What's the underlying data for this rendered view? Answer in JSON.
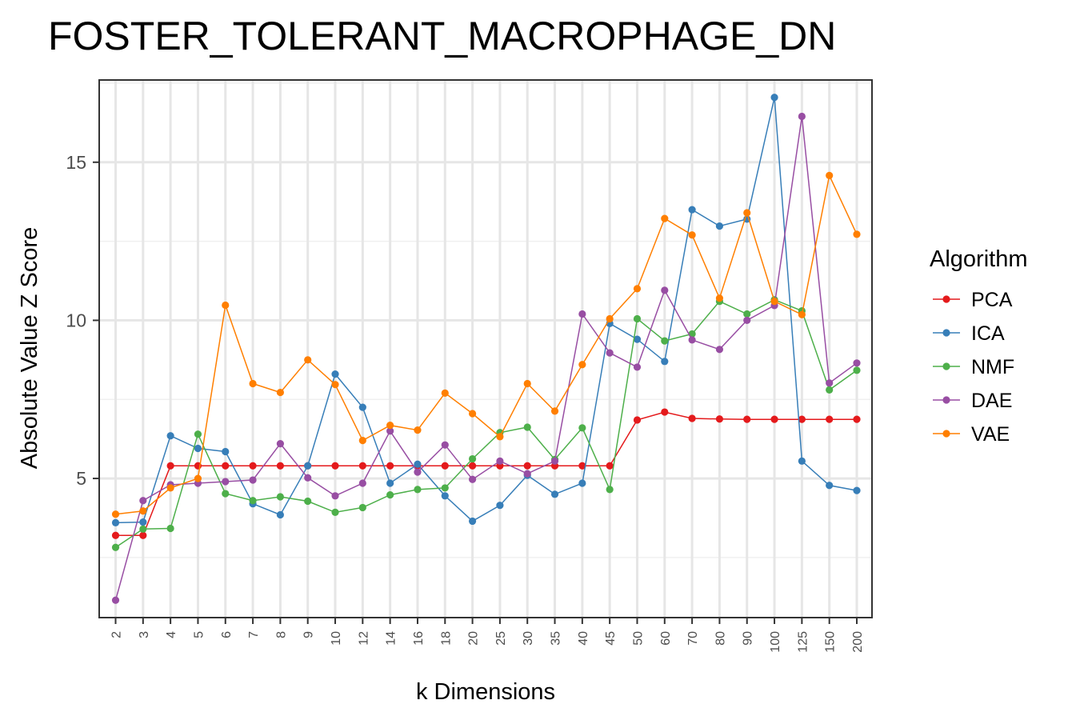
{
  "chart_data": {
    "type": "line",
    "title": "FOSTER_TOLERANT_MACROPHAGE_DN",
    "xlabel": "k Dimensions",
    "ylabel": "Absolute Value Z Score",
    "ylim": [
      0.6,
      17.6
    ],
    "yticks": [
      5,
      10,
      15
    ],
    "grid": true,
    "legend": {
      "title": "Algorithm",
      "placement": "right"
    },
    "categories": [
      "2",
      "3",
      "4",
      "5",
      "6",
      "7",
      "8",
      "9",
      "10",
      "12",
      "14",
      "16",
      "18",
      "20",
      "25",
      "30",
      "35",
      "40",
      "45",
      "50",
      "60",
      "70",
      "80",
      "90",
      "100",
      "125",
      "150",
      "200"
    ],
    "series": [
      {
        "name": "PCA",
        "color": "#e41a1c",
        "values": [
          3.2,
          3.2,
          5.4,
          5.4,
          5.4,
          5.4,
          5.4,
          5.4,
          5.4,
          5.4,
          5.4,
          5.4,
          5.4,
          5.4,
          5.4,
          5.4,
          5.4,
          5.4,
          5.4,
          6.85,
          7.1,
          6.9,
          6.88,
          6.87,
          6.87,
          6.87,
          6.87,
          6.87
        ]
      },
      {
        "name": "ICA",
        "color": "#377eb8",
        "values": [
          3.6,
          3.62,
          6.35,
          5.95,
          5.85,
          4.2,
          3.85,
          5.4,
          8.3,
          7.25,
          4.85,
          5.45,
          4.45,
          3.65,
          4.15,
          5.1,
          4.5,
          4.85,
          9.9,
          9.4,
          8.7,
          13.5,
          12.98,
          13.2,
          17.05,
          5.55,
          4.78,
          4.62
        ]
      },
      {
        "name": "NMF",
        "color": "#4daf4a",
        "values": [
          2.82,
          3.4,
          3.42,
          6.4,
          4.52,
          4.3,
          4.42,
          4.28,
          3.93,
          4.08,
          4.48,
          4.65,
          4.7,
          5.62,
          6.45,
          6.62,
          5.6,
          6.6,
          4.65,
          10.05,
          9.35,
          9.57,
          10.6,
          10.2,
          10.65,
          10.3,
          7.8,
          8.42
        ]
      },
      {
        "name": "DAE",
        "color": "#984ea3",
        "values": [
          1.15,
          4.3,
          4.8,
          4.85,
          4.9,
          4.95,
          6.1,
          5.02,
          4.45,
          4.85,
          6.5,
          5.2,
          6.06,
          4.97,
          5.55,
          5.15,
          5.55,
          10.2,
          8.97,
          8.52,
          10.95,
          9.38,
          9.08,
          10.0,
          10.47,
          16.45,
          8.02,
          8.65
        ]
      },
      {
        "name": "VAE",
        "color": "#ff7f00",
        "values": [
          3.87,
          3.97,
          4.7,
          5.0,
          10.48,
          8.0,
          7.72,
          8.75,
          7.97,
          6.2,
          6.68,
          6.53,
          7.7,
          7.05,
          6.32,
          8.0,
          7.13,
          8.6,
          10.05,
          11.0,
          13.22,
          12.7,
          10.7,
          13.4,
          10.6,
          10.18,
          14.58,
          12.72
        ]
      }
    ]
  }
}
